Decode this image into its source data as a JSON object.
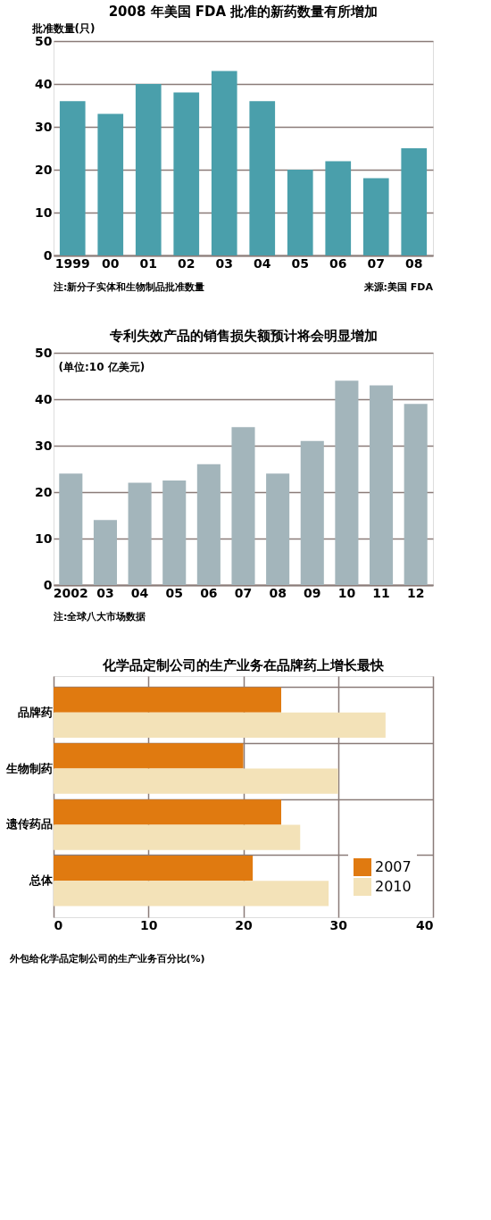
{
  "chart_data": [
    {
      "type": "bar",
      "title": "2008 年美国 FDA 批准的新药数量有所增加",
      "ylabel": "批准数量(只)",
      "categories": [
        "1999",
        "00",
        "01",
        "02",
        "03",
        "04",
        "05",
        "06",
        "07",
        "08"
      ],
      "values": [
        36,
        33,
        40,
        38,
        43,
        36,
        20,
        22,
        18,
        25
      ],
      "color": "#4a9fab",
      "ylim": [
        0,
        50
      ],
      "yticks": [
        0,
        10,
        20,
        30,
        40,
        50
      ],
      "grid": "y",
      "annotations": [
        "注:新分子实体和生物制品批准数量",
        "来源:美国 FDA"
      ]
    },
    {
      "type": "bar",
      "title": "专利失效产品的销售损失额预计将会明显增加",
      "ylabel": "(单位:10 亿美元)",
      "categories": [
        "2002",
        "03",
        "04",
        "05",
        "06",
        "07",
        "08",
        "09",
        "10",
        "11",
        "12"
      ],
      "values": [
        24,
        14,
        22,
        22.5,
        26,
        34,
        24,
        31,
        44,
        43,
        39
      ],
      "color": "#a3b5bb",
      "ylim": [
        0,
        50
      ],
      "yticks": [
        0,
        10,
        20,
        30,
        40,
        50
      ],
      "grid": "y",
      "annotations": [
        "注:全球八大市场数据"
      ]
    },
    {
      "type": "bar",
      "orientation": "horizontal",
      "title": "化学品定制公司的生产业务在品牌药上增长最快",
      "xlabel": "外包给化学品定制公司的生产业务百分比(%)",
      "categories": [
        "品牌药",
        "生物制药",
        "遗传药品",
        "总体"
      ],
      "series": [
        {
          "name": "2007",
          "color": "#e07a10",
          "values": [
            24,
            20,
            24,
            21
          ]
        },
        {
          "name": "2010",
          "color": "#f3e2b8",
          "values": [
            35,
            30,
            26,
            29
          ]
        }
      ],
      "xlim": [
        0,
        40
      ],
      "xticks": [
        0,
        10,
        20,
        30,
        40
      ],
      "grid": true,
      "legend": "bottom right"
    }
  ]
}
